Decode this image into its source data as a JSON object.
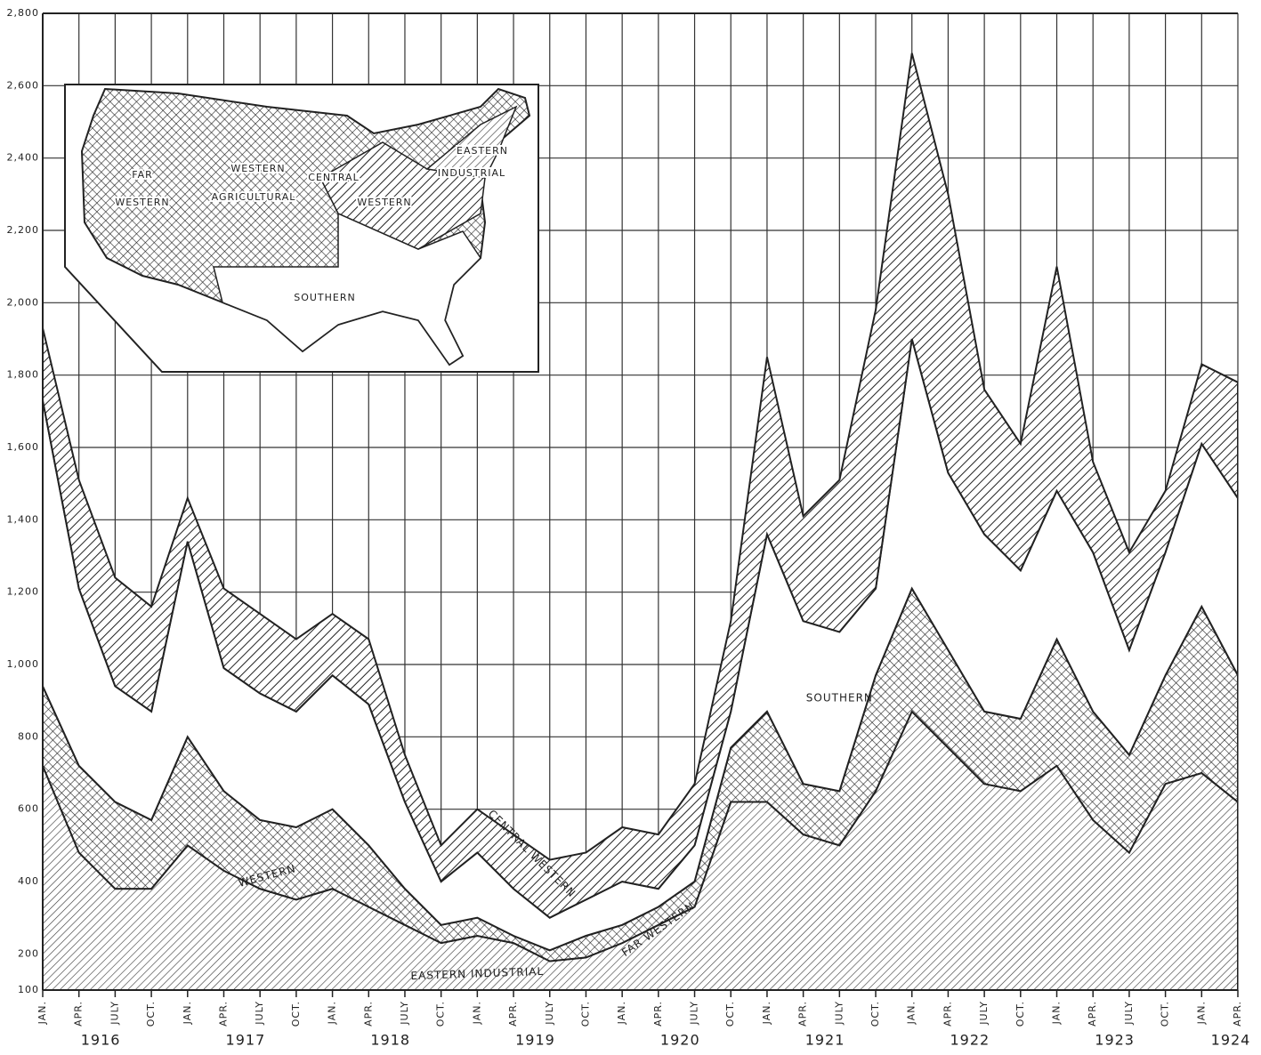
{
  "chart_data": {
    "type": "stacked_area",
    "categories": [
      "JAN.",
      "APR.",
      "JULY",
      "OCT.",
      "JAN.",
      "APR.",
      "JULY",
      "OCT.",
      "JAN.",
      "APR.",
      "JULY",
      "OCT.",
      "JAN.",
      "APR.",
      "JULY",
      "OCT.",
      "JAN.",
      "APR.",
      "JULY",
      "OCT.",
      "JAN.",
      "APR.",
      "JULY",
      "OCT.",
      "JAN.",
      "APR.",
      "JULY",
      "OCT.",
      "JAN.",
      "APR.",
      "JULY",
      "OCT.",
      "JAN.",
      "APR."
    ],
    "years": [
      "1916",
      "1917",
      "1918",
      "1919",
      "1920",
      "1921",
      "1922",
      "1923",
      "1924"
    ],
    "series": [
      {
        "name": "EASTERN INDUSTRIAL",
        "color": "#ffffff",
        "values": [
          720,
          480,
          380,
          380,
          500,
          430,
          380,
          350,
          380,
          330,
          280,
          230,
          250,
          230,
          180,
          190,
          230,
          280,
          330,
          620,
          620,
          530,
          500,
          650,
          870,
          770,
          670,
          650,
          720,
          570,
          480,
          670,
          700,
          620
        ]
      },
      {
        "name": "FAR WESTERN",
        "color": "#ffffff",
        "values": [
          220,
          240,
          240,
          190,
          300,
          220,
          190,
          200,
          220,
          170,
          100,
          50,
          50,
          20,
          30,
          60,
          50,
          50,
          70,
          150,
          250,
          140,
          150,
          320,
          340,
          270,
          200,
          200,
          350,
          300,
          270,
          300,
          460,
          350
        ]
      },
      {
        "name": "SOUTHERN",
        "color": "#ffffff",
        "values": [
          790,
          490,
          320,
          300,
          540,
          340,
          350,
          320,
          370,
          390,
          240,
          120,
          180,
          130,
          90,
          100,
          120,
          50,
          100,
          100,
          490,
          450,
          440,
          240,
          690,
          490,
          490,
          410,
          410,
          440,
          290,
          340,
          450,
          490
        ]
      },
      {
        "name": "CENTRAL WESTERN",
        "color": "#ffffff",
        "values": [
          200,
          300,
          300,
          290,
          120,
          220,
          220,
          200,
          170,
          180,
          130,
          100,
          120,
          150,
          160,
          130,
          150,
          150,
          170,
          250,
          490,
          290,
          420,
          770,
          790,
          770,
          400,
          350,
          620,
          250,
          270,
          170,
          220,
          320
        ]
      }
    ],
    "annotations": [
      "WESTERN"
    ],
    "ylim": [
      100,
      2800
    ],
    "yticks": [
      100,
      200,
      400,
      600,
      800,
      {
        "value": 1000,
        "label": "1,000"
      },
      {
        "value": 1200,
        "label": "1,200"
      },
      {
        "value": 1400,
        "label": "1,400"
      },
      {
        "value": 1600,
        "label": "1,600"
      },
      {
        "value": 1800,
        "label": "1,800"
      },
      {
        "value": 2000,
        "label": "2,000"
      },
      {
        "value": 2200,
        "label": "2,200"
      },
      {
        "value": 2400,
        "label": "2,400"
      },
      {
        "value": 2600,
        "label": "2,600"
      },
      {
        "value": 2800,
        "label": "2,800"
      }
    ],
    "grid": true
  },
  "map": {
    "regions": [
      "FAR",
      "WESTERN",
      "WESTERN",
      "AGRICULTURAL",
      "CENTRAL",
      "WESTERN",
      "EASTERN",
      "INDUSTRIAL",
      "SOUTHERN"
    ]
  }
}
